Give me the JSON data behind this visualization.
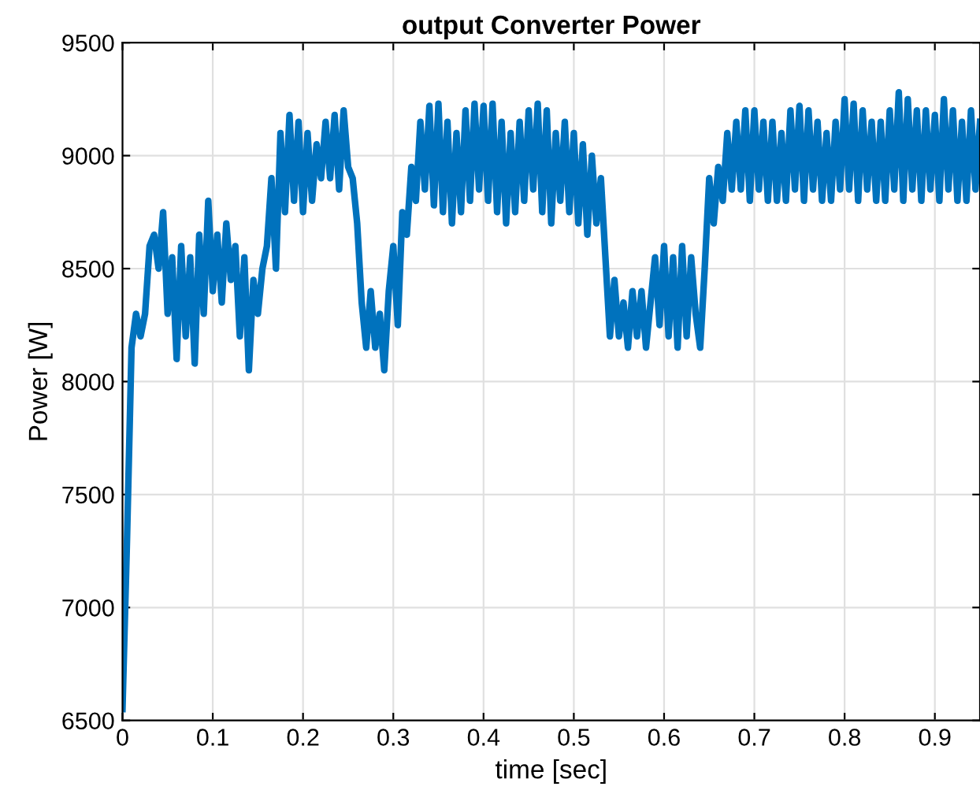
{
  "chart_data": {
    "type": "line",
    "title": "output Converter Power",
    "xlabel": "time [sec]",
    "ylabel": "Power [W]",
    "xlim": [
      0,
      0.95
    ],
    "ylim": [
      6500,
      9500
    ],
    "xticks": [
      0,
      0.1,
      0.2,
      0.3,
      0.4,
      0.5,
      0.6,
      0.7,
      0.8,
      0.9
    ],
    "yticks": [
      6500,
      7000,
      7500,
      8000,
      8500,
      9000,
      9500
    ],
    "grid": true,
    "marker": "none",
    "line_style": "solid",
    "series": [
      {
        "color": "#0072bd",
        "x": [
          0,
          0.005,
          0.01,
          0.015,
          0.02,
          0.025,
          0.03,
          0.035,
          0.04,
          0.045,
          0.05,
          0.055,
          0.06,
          0.065,
          0.07,
          0.075,
          0.08,
          0.085,
          0.09,
          0.095,
          0.1,
          0.105,
          0.11,
          0.115,
          0.12,
          0.125,
          0.13,
          0.135,
          0.14,
          0.145,
          0.15,
          0.155,
          0.16,
          0.165,
          0.17,
          0.175,
          0.18,
          0.185,
          0.19,
          0.195,
          0.2,
          0.205,
          0.21,
          0.215,
          0.22,
          0.225,
          0.23,
          0.235,
          0.24,
          0.245,
          0.25,
          0.255,
          0.26,
          0.265,
          0.27,
          0.275,
          0.28,
          0.285,
          0.29,
          0.295,
          0.3,
          0.305,
          0.31,
          0.315,
          0.32,
          0.325,
          0.33,
          0.335,
          0.34,
          0.345,
          0.35,
          0.355,
          0.36,
          0.365,
          0.37,
          0.375,
          0.38,
          0.385,
          0.39,
          0.395,
          0.4,
          0.405,
          0.41,
          0.415,
          0.42,
          0.425,
          0.43,
          0.435,
          0.44,
          0.445,
          0.45,
          0.455,
          0.46,
          0.465,
          0.47,
          0.475,
          0.48,
          0.485,
          0.49,
          0.495,
          0.5,
          0.505,
          0.51,
          0.515,
          0.52,
          0.525,
          0.53,
          0.535,
          0.54,
          0.545,
          0.55,
          0.555,
          0.56,
          0.565,
          0.57,
          0.575,
          0.58,
          0.585,
          0.59,
          0.595,
          0.6,
          0.605,
          0.61,
          0.615,
          0.62,
          0.625,
          0.63,
          0.635,
          0.64,
          0.645,
          0.65,
          0.655,
          0.66,
          0.665,
          0.67,
          0.675,
          0.68,
          0.685,
          0.69,
          0.695,
          0.7,
          0.705,
          0.71,
          0.715,
          0.72,
          0.725,
          0.73,
          0.735,
          0.74,
          0.745,
          0.75,
          0.755,
          0.76,
          0.765,
          0.77,
          0.775,
          0.78,
          0.785,
          0.79,
          0.795,
          0.8,
          0.805,
          0.81,
          0.815,
          0.82,
          0.825,
          0.83,
          0.835,
          0.84,
          0.845,
          0.85,
          0.855,
          0.86,
          0.865,
          0.87,
          0.875,
          0.88,
          0.885,
          0.89,
          0.895,
          0.9,
          0.905,
          0.91,
          0.915,
          0.92,
          0.925,
          0.93,
          0.935,
          0.94,
          0.945,
          0.95
        ],
        "values": [
          6550,
          7300,
          8150,
          8300,
          8200,
          8300,
          8600,
          8650,
          8500,
          8750,
          8300,
          8550,
          8100,
          8600,
          8200,
          8550,
          8080,
          8650,
          8300,
          8800,
          8400,
          8650,
          8350,
          8700,
          8450,
          8600,
          8200,
          8550,
          8050,
          8450,
          8300,
          8500,
          8600,
          8900,
          8500,
          9100,
          8750,
          9180,
          8800,
          9150,
          8750,
          9100,
          8800,
          9050,
          8900,
          9150,
          8900,
          9180,
          8850,
          9200,
          8950,
          8900,
          8700,
          8350,
          8150,
          8400,
          8150,
          8300,
          8050,
          8400,
          8600,
          8250,
          8750,
          8650,
          8950,
          8800,
          9150,
          8850,
          9220,
          8780,
          9230,
          8750,
          9150,
          8700,
          9100,
          8750,
          9200,
          8800,
          9230,
          8850,
          9220,
          8800,
          9230,
          8750,
          9150,
          8700,
          9100,
          8750,
          9150,
          8800,
          9200,
          8850,
          9230,
          8750,
          9200,
          8700,
          9100,
          8800,
          9150,
          8750,
          9100,
          8700,
          9050,
          8650,
          9000,
          8700,
          8900,
          8550,
          8200,
          8450,
          8200,
          8350,
          8150,
          8400,
          8200,
          8400,
          8150,
          8350,
          8550,
          8250,
          8600,
          8200,
          8550,
          8150,
          8600,
          8200,
          8550,
          8300,
          8150,
          8500,
          8900,
          8700,
          8950,
          8800,
          9100,
          8850,
          9150,
          8850,
          9200,
          8800,
          9200,
          8850,
          9150,
          8800,
          9150,
          8800,
          9100,
          8800,
          9200,
          8850,
          9220,
          8800,
          9200,
          8850,
          9150,
          8800,
          9100,
          8800,
          9150,
          8850,
          9250,
          8850,
          9230,
          8800,
          9200,
          8850,
          9150,
          8800,
          9150,
          8800,
          9200,
          8850,
          9280,
          8800,
          9250,
          8850,
          9200,
          8800,
          9200,
          8850,
          9180,
          8800,
          9250,
          8850,
          9200,
          8800,
          9150,
          8800,
          9200,
          8850,
          9150
        ]
      }
    ]
  }
}
